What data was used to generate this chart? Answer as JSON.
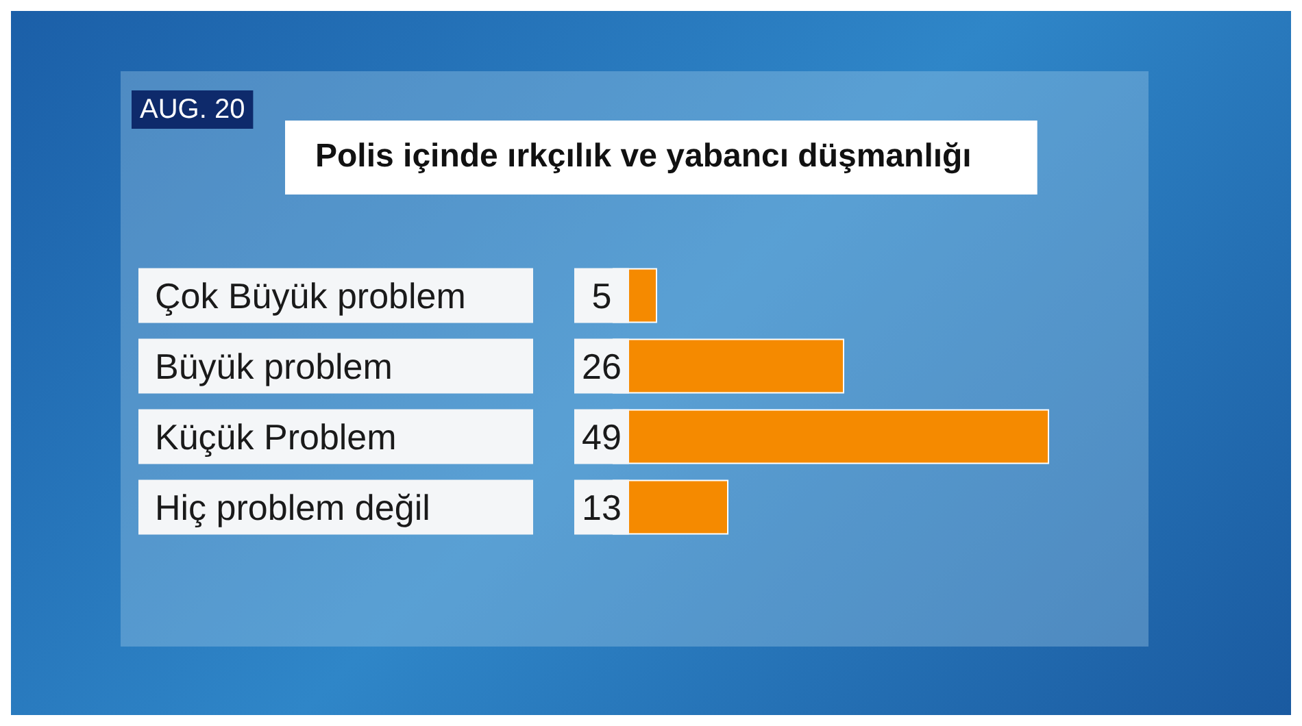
{
  "chart_data": {
    "type": "bar",
    "orientation": "horizontal",
    "title": "Polis içinde ırkçılık ve yabancı düşmanlığı",
    "annotations": [
      "AUG. 20"
    ],
    "categories": [
      "Çok Büyük problem",
      "Büyük problem",
      "Küçük Problem",
      "Hiç problem değil"
    ],
    "values": [
      5,
      26,
      49,
      13
    ],
    "color": "#f58a00",
    "data_labels": true
  }
}
